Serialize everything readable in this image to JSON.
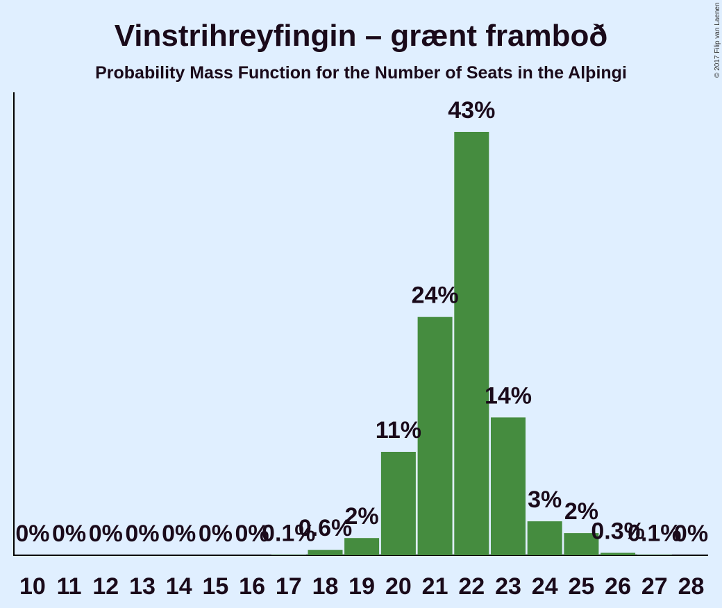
{
  "chart_data": {
    "type": "bar",
    "title": "Vinstrihreyfingin – grænt framboð",
    "subtitle": "Probability Mass Function for the Number of Seats in the Alþingi",
    "credit": "© 2017 Filip van Laenen",
    "categories": [
      "10",
      "11",
      "12",
      "13",
      "14",
      "15",
      "16",
      "17",
      "18",
      "19",
      "20",
      "21",
      "22",
      "23",
      "24",
      "25",
      "26",
      "27",
      "28"
    ],
    "values": [
      0,
      0,
      0,
      0,
      0,
      0,
      0,
      0.1,
      0.6,
      2,
      11,
      24,
      43,
      14,
      3,
      2,
      0.3,
      0.1,
      0
    ],
    "labels": [
      "0%",
      "0%",
      "0%",
      "0%",
      "0%",
      "0%",
      "0%",
      "0.1%",
      "0.6%",
      "2%",
      "11%",
      "24%",
      "43%",
      "14%",
      "3%",
      "2%",
      "0.3%",
      "0.1%",
      "0%"
    ],
    "bar_heights_percent": [
      0,
      0,
      0,
      0,
      0,
      0,
      0,
      0.05,
      0.55,
      1.75,
      10.5,
      24.2,
      43.0,
      14.0,
      3.45,
      2.25,
      0.25,
      0.05,
      0
    ],
    "ylim": [
      0,
      45
    ],
    "bar_color": "#458c3f",
    "text_color": "#1a0a1a",
    "background": "#e0efff"
  }
}
